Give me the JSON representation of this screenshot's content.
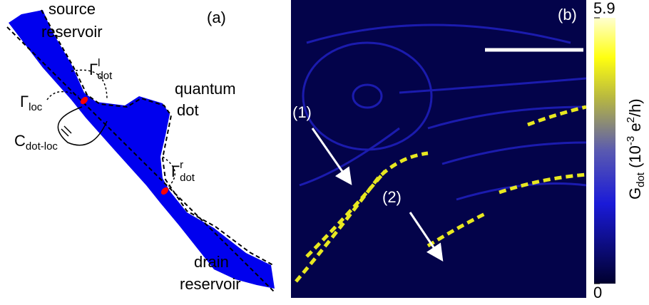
{
  "panel_a": {
    "label": "(a)",
    "source_reservoir": [
      "source",
      "reservoir"
    ],
    "quantum_dot": [
      "quantum",
      "dot"
    ],
    "drain_reservoir": [
      "drain",
      "reservoir"
    ],
    "gamma_loc": {
      "symbol": "Γ",
      "sub": "loc"
    },
    "gamma_dot_l": {
      "symbol": "Γ",
      "sub": "dot",
      "sup": "l"
    },
    "gamma_dot_r": {
      "symbol": "Γ",
      "sub": "dot",
      "sup": "r"
    },
    "c_dot_loc": {
      "symbol": "C",
      "sub": "dot-loc"
    }
  },
  "panel_b": {
    "label": "(b)",
    "markers": [
      "(1)",
      "(2)"
    ],
    "colorbar": {
      "title": {
        "symbol": "G",
        "sub": "dot",
        "unit_open": " (10",
        "unit_exp": "-3",
        "unit_mid": " e",
        "unit_exp2": "2",
        "unit_close": "/h)"
      },
      "lim": [
        0,
        5.9
      ],
      "ticks": [
        0,
        5.9
      ]
    }
  }
}
